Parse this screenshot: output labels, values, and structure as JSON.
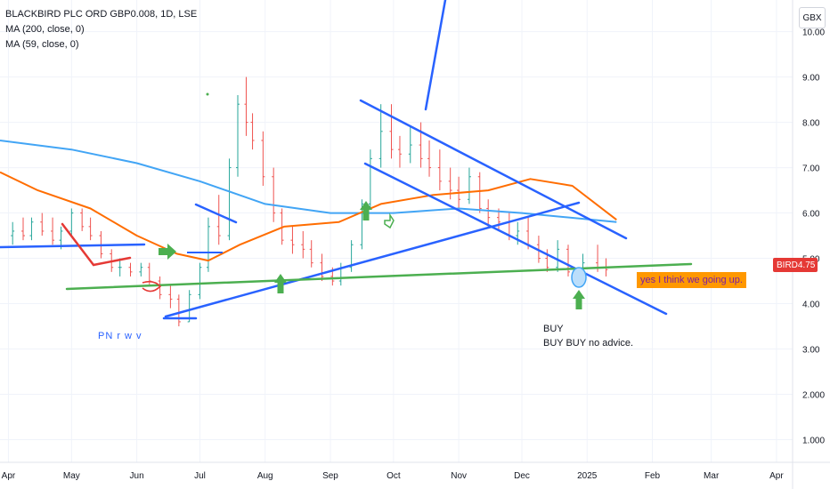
{
  "legend": {
    "symbol": "BLACKBIRD PLC ORD GBP0.008, 1D, LSE",
    "ma1": "MA (200, close, 0)",
    "ma2": "MA (59, close, 0)"
  },
  "unit_label": "GBX",
  "last_price": {
    "ticker": "BIRD",
    "value": "4.75",
    "color": "#e53935"
  },
  "annotations": {
    "note": "yes I think we going up.",
    "blue_text": "PN r w v",
    "buy_line1": "BUY",
    "buy_line2": "BUY BUY no advice."
  },
  "chart_data": {
    "type": "candlestick",
    "ylim": [
      0.5,
      10.6
    ],
    "y_ticks": [
      "1.000",
      "2.000",
      "3.00",
      "4.00",
      "5.00",
      "6.00",
      "7.00",
      "8.00",
      "9.00",
      "10.00"
    ],
    "y_tick_values": [
      1,
      2,
      3,
      4,
      5,
      6,
      7,
      8,
      9,
      10
    ],
    "x_labels": [
      "Apr",
      "May",
      "Jun",
      "Jul",
      "Aug",
      "Sep",
      "Oct",
      "Nov",
      "Dec",
      "2025",
      "Feb",
      "Mar",
      "Apr"
    ],
    "x_label_dates": [
      "2024-04-01",
      "2024-05-01",
      "2024-06-01",
      "2024-07-01",
      "2024-08-01",
      "2024-09-01",
      "2024-10-01",
      "2024-11-01",
      "2024-12-01",
      "2025-01-01",
      "2025-02-01",
      "2025-03-01",
      "2025-04-01"
    ],
    "colors": {
      "up": "#26a69a",
      "down": "#ef5350",
      "ma200": "#42a5f5",
      "ma59": "#ff6d00",
      "trend_blue": "#2962ff",
      "trend_green": "#4caf50",
      "trend_red": "#e53935"
    },
    "candles": [
      [
        "2024-04-03",
        5.5,
        5.8,
        5.3,
        5.6
      ],
      [
        "2024-04-08",
        5.6,
        5.9,
        5.4,
        5.5
      ],
      [
        "2024-04-12",
        5.5,
        5.9,
        5.4,
        5.8
      ],
      [
        "2024-04-17",
        5.8,
        6.0,
        5.5,
        5.6
      ],
      [
        "2024-04-22",
        5.6,
        5.9,
        5.3,
        5.4
      ],
      [
        "2024-04-26",
        5.4,
        5.7,
        5.2,
        5.6
      ],
      [
        "2024-05-01",
        5.6,
        6.1,
        5.5,
        6.0
      ],
      [
        "2024-05-06",
        6.0,
        6.1,
        5.6,
        5.7
      ],
      [
        "2024-05-10",
        5.7,
        5.9,
        5.4,
        5.5
      ],
      [
        "2024-05-15",
        5.5,
        5.6,
        5.0,
        5.1
      ],
      [
        "2024-05-20",
        5.1,
        5.2,
        4.7,
        4.8
      ],
      [
        "2024-05-24",
        4.8,
        5.0,
        4.6,
        4.8
      ],
      [
        "2024-05-29",
        4.8,
        4.9,
        4.6,
        4.7
      ],
      [
        "2024-06-03",
        4.7,
        4.9,
        4.6,
        4.8
      ],
      [
        "2024-06-07",
        4.8,
        4.9,
        4.4,
        4.5
      ],
      [
        "2024-06-12",
        4.5,
        4.6,
        4.1,
        4.2
      ],
      [
        "2024-06-17",
        4.2,
        4.4,
        3.9,
        4.1
      ],
      [
        "2024-06-21",
        4.1,
        4.2,
        3.5,
        3.6
      ],
      [
        "2024-06-26",
        3.6,
        4.3,
        3.6,
        4.2
      ],
      [
        "2024-07-01",
        4.2,
        4.9,
        4.1,
        4.8
      ],
      [
        "2024-07-05",
        4.8,
        5.9,
        4.7,
        5.7
      ],
      [
        "2024-07-10",
        5.7,
        6.4,
        5.3,
        5.5
      ],
      [
        "2024-07-15",
        5.5,
        7.2,
        5.4,
        7.0
      ],
      [
        "2024-07-19",
        7.0,
        8.6,
        6.8,
        8.4
      ],
      [
        "2024-07-23",
        8.4,
        9.0,
        7.7,
        8.0
      ],
      [
        "2024-07-26",
        8.0,
        8.2,
        7.4,
        7.6
      ],
      [
        "2024-07-31",
        7.6,
        7.8,
        6.6,
        6.8
      ],
      [
        "2024-08-05",
        6.8,
        7.0,
        5.8,
        6.0
      ],
      [
        "2024-08-09",
        6.0,
        6.1,
        5.3,
        5.4
      ],
      [
        "2024-08-14",
        5.4,
        5.7,
        5.1,
        5.3
      ],
      [
        "2024-08-19",
        5.3,
        5.6,
        5.0,
        5.2
      ],
      [
        "2024-08-23",
        5.2,
        5.4,
        4.8,
        4.9
      ],
      [
        "2024-08-28",
        4.9,
        5.1,
        4.5,
        4.6
      ],
      [
        "2024-09-02",
        4.6,
        4.8,
        4.4,
        4.5
      ],
      [
        "2024-09-06",
        4.5,
        4.9,
        4.4,
        4.8
      ],
      [
        "2024-09-11",
        4.8,
        5.4,
        4.7,
        5.3
      ],
      [
        "2024-09-16",
        5.3,
        6.3,
        5.2,
        6.2
      ],
      [
        "2024-09-20",
        6.2,
        7.4,
        6.1,
        7.2
      ],
      [
        "2024-09-25",
        7.2,
        8.4,
        7.0,
        7.8
      ],
      [
        "2024-09-30",
        7.8,
        8.4,
        7.2,
        7.4
      ],
      [
        "2024-10-04",
        7.4,
        7.7,
        7.0,
        7.3
      ],
      [
        "2024-10-09",
        7.3,
        7.9,
        7.1,
        7.5
      ],
      [
        "2024-10-14",
        7.5,
        8.0,
        7.0,
        7.2
      ],
      [
        "2024-10-18",
        7.2,
        7.6,
        6.8,
        7.0
      ],
      [
        "2024-10-23",
        7.0,
        7.4,
        6.5,
        6.7
      ],
      [
        "2024-10-28",
        6.7,
        7.0,
        6.3,
        6.5
      ],
      [
        "2024-11-01",
        6.5,
        6.8,
        6.1,
        6.3
      ],
      [
        "2024-11-06",
        6.3,
        7.0,
        6.2,
        6.8
      ],
      [
        "2024-11-11",
        6.8,
        6.9,
        6.0,
        6.1
      ],
      [
        "2024-11-15",
        6.1,
        6.3,
        5.7,
        5.9
      ],
      [
        "2024-11-20",
        5.9,
        6.1,
        5.6,
        5.8
      ],
      [
        "2024-11-25",
        5.8,
        6.0,
        5.4,
        5.5
      ],
      [
        "2024-11-29",
        5.5,
        5.8,
        5.3,
        5.6
      ],
      [
        "2024-12-04",
        5.6,
        5.9,
        5.2,
        5.3
      ],
      [
        "2024-12-09",
        5.3,
        5.5,
        4.9,
        5.0
      ],
      [
        "2024-12-13",
        5.0,
        5.2,
        4.7,
        4.8
      ],
      [
        "2024-12-18",
        4.8,
        5.4,
        4.7,
        5.2
      ],
      [
        "2024-12-23",
        5.2,
        5.3,
        4.6,
        4.7
      ],
      [
        "2024-12-30",
        4.7,
        5.1,
        4.6,
        4.9
      ],
      [
        "2025-01-06",
        4.9,
        5.3,
        4.7,
        4.8
      ],
      [
        "2025-01-10",
        4.8,
        5.0,
        4.6,
        4.75
      ]
    ],
    "ma200": [
      [
        "2024-03-28",
        7.6
      ],
      [
        "2024-05-01",
        7.4
      ],
      [
        "2024-06-01",
        7.1
      ],
      [
        "2024-07-01",
        6.7
      ],
      [
        "2024-08-01",
        6.2
      ],
      [
        "2024-09-01",
        6.0
      ],
      [
        "2024-10-01",
        6.0
      ],
      [
        "2024-11-01",
        6.1
      ],
      [
        "2024-12-01",
        6.0
      ],
      [
        "2025-01-15",
        5.8
      ]
    ],
    "ma59": [
      [
        "2024-03-28",
        6.9
      ],
      [
        "2024-04-15",
        6.5
      ],
      [
        "2024-05-10",
        6.1
      ],
      [
        "2024-06-01",
        5.5
      ],
      [
        "2024-06-20",
        5.1
      ],
      [
        "2024-07-05",
        4.95
      ],
      [
        "2024-07-20",
        5.3
      ],
      [
        "2024-08-10",
        5.7
      ],
      [
        "2024-09-05",
        5.8
      ],
      [
        "2024-09-25",
        6.2
      ],
      [
        "2024-10-20",
        6.4
      ],
      [
        "2024-11-15",
        6.5
      ],
      [
        "2024-12-05",
        6.75
      ],
      [
        "2024-12-25",
        6.6
      ],
      [
        "2025-01-15",
        5.85
      ]
    ]
  }
}
